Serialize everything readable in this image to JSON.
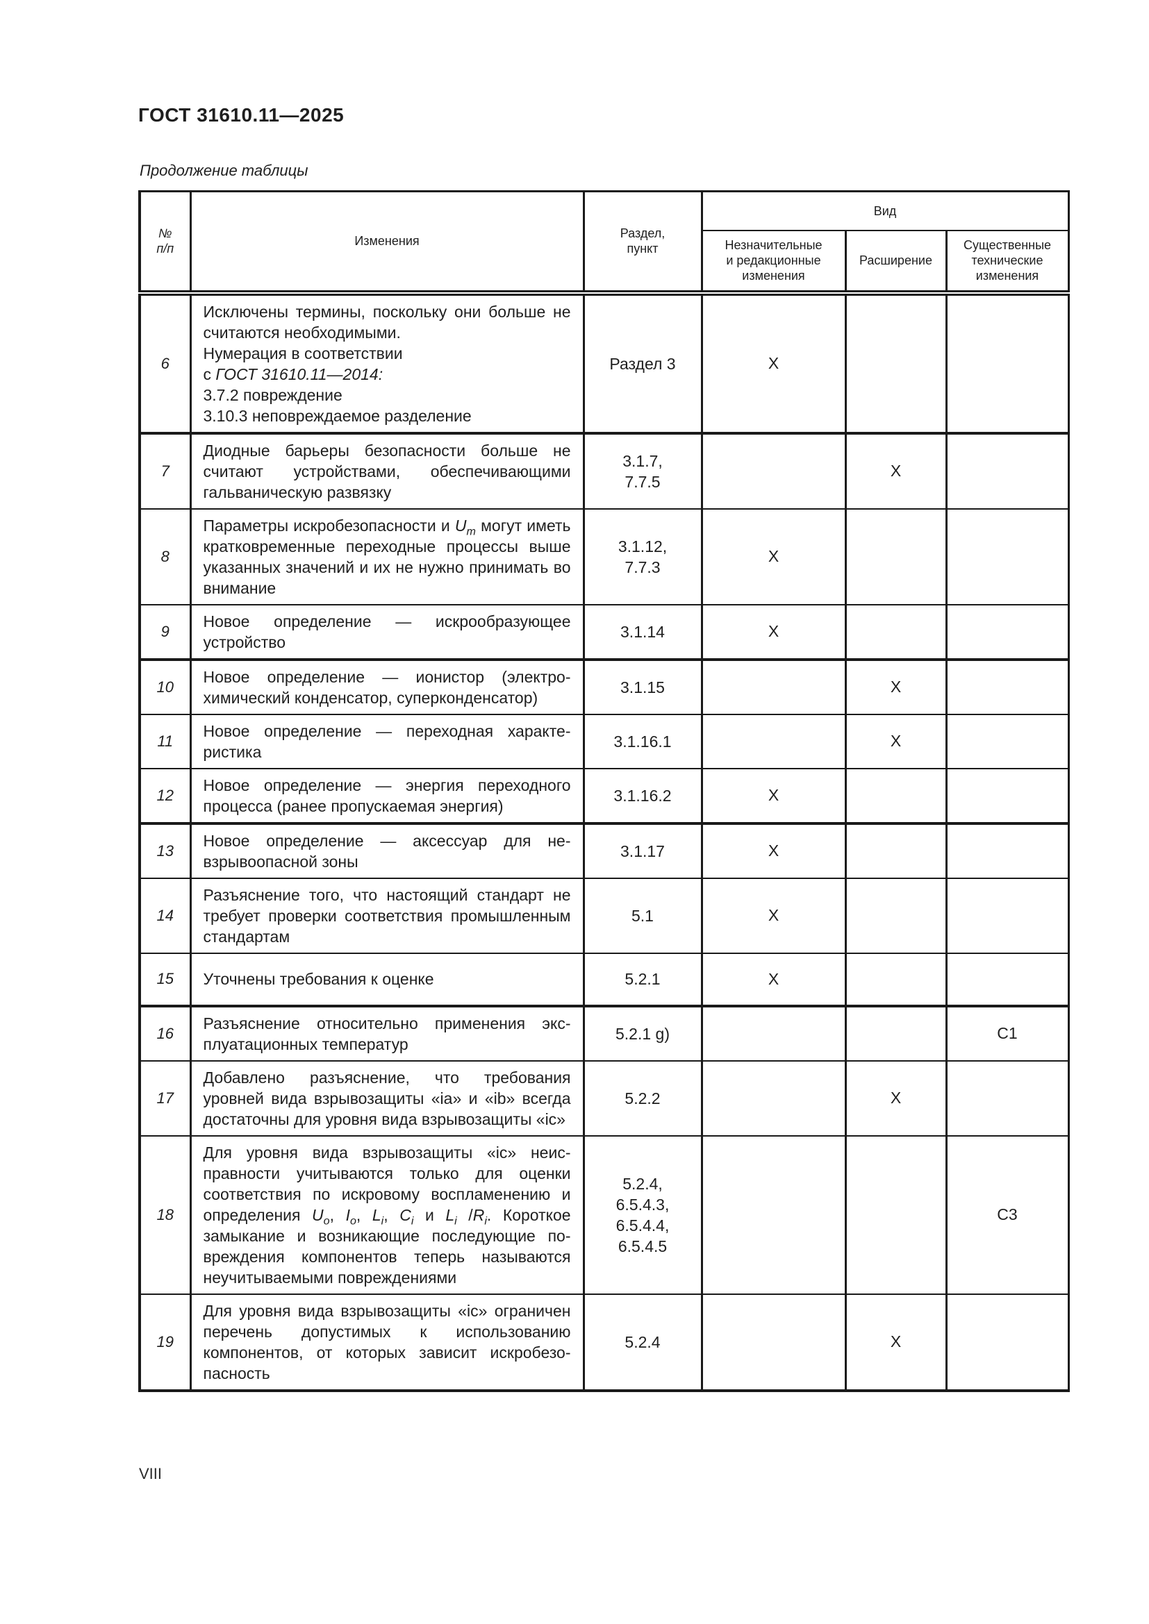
{
  "page": {
    "standard": "ГОСТ 31610.11—2025",
    "table_caption": "Продолжение таблицы",
    "page_number": "VIII"
  },
  "table": {
    "columns": {
      "num": "№\nп/п",
      "changes": "Изменения",
      "section": "Раздел,\nпункт",
      "vid_group": "Вид",
      "minor": "Незначительные\nи редакционные\nизменения",
      "extension": "Расширение",
      "substantial": "Существенные\nтехнические\nизменения"
    },
    "rows": [
      {
        "num": "6",
        "changes": "Исключены термины, поскольку они больше не считаются необходимыми.\nНумерация в соответствии\nс *ГОСТ 31610.11—2014:*\n3.7.2 повреждение\n3.10.3 неповреждаемое разделение",
        "section": "Раздел 3",
        "minor": "X",
        "extension": "",
        "substantial": "",
        "thick_top": false
      },
      {
        "num": "7",
        "changes": "Диодные барьеры безопасности больше не считают устройствами, обеспечивающими гальваническую развязку",
        "section": "3.1.7,\n7.7.5",
        "minor": "",
        "extension": "X",
        "substantial": "",
        "thick_top": true
      },
      {
        "num": "8",
        "changes": "Параметры искробезопасности и *U*~*m*~ могут иметь кратковременные переходные процес­сы выше указанных значений и их не нужно принимать во внимание",
        "section": "3.1.12,\n7.7.3",
        "minor": "X",
        "extension": "",
        "substantial": "",
        "thick_top": false
      },
      {
        "num": "9",
        "changes": "Новое определение — искрообразующее устройство",
        "section": "3.1.14",
        "minor": "X",
        "extension": "",
        "substantial": "",
        "thick_top": false
      },
      {
        "num": "10",
        "changes": "Новое определение — ионистор (электро­химический конденсатор, суперконденсатор)",
        "section": "3.1.15",
        "minor": "",
        "extension": "X",
        "substantial": "",
        "thick_top": true
      },
      {
        "num": "11",
        "changes": "Новое определение — переходная характе­ристика",
        "section": "3.1.16.1",
        "minor": "",
        "extension": "X",
        "substantial": "",
        "thick_top": false
      },
      {
        "num": "12",
        "changes": "Новое определение — энергия переходного процесса (ранее пропускаемая энергия)",
        "section": "3.1.16.2",
        "minor": "X",
        "extension": "",
        "substantial": "",
        "thick_top": false
      },
      {
        "num": "13",
        "changes": "Новое определение — аксессуар для не­взрывоопасной зоны",
        "section": "3.1.17",
        "minor": "X",
        "extension": "",
        "substantial": "",
        "thick_top": true
      },
      {
        "num": "14",
        "changes": "Разъяснение того, что настоящий стандарт не требует проверки соответствия промыш­ленным стандартам",
        "section": "5.1",
        "minor": "X",
        "extension": "",
        "substantial": "",
        "thick_top": false
      },
      {
        "num": "15",
        "changes": "Уточнены требования к оценке",
        "section": "5.2.1",
        "minor": "X",
        "extension": "",
        "substantial": "",
        "thick_top": false
      },
      {
        "num": "16",
        "changes": "Разъяснение относительно применения экс­плуатационных температур",
        "section": "5.2.1 g)",
        "minor": "",
        "extension": "",
        "substantial": "С1",
        "thick_top": true
      },
      {
        "num": "17",
        "changes": "Добавлено разъяснение, что требования уровней вида взрывозащиты «ia» и «ib» всег­да достаточны для уровня вида взрывозащи­ты «ic»",
        "section": "5.2.2",
        "minor": "",
        "extension": "X",
        "substantial": "",
        "thick_top": false
      },
      {
        "num": "18",
        "changes": "Для уровня вида взрывозащиты «ic» неис­правности учитываются только для оценки соответствия по искровому воспламенению и определения *U*~*o*~, *I*~*o*~, *L*~*i*~, *C*~*i*~ и *L*~*i*~ /*R*~*i*~. Короткое замыкание и возникающие последующие по­вреждения компонентов теперь называются неучитываемыми повреждениями",
        "section": "5.2.4,\n6.5.4.3,\n6.5.4.4,\n6.5.4.5",
        "minor": "",
        "extension": "",
        "substantial": "С3",
        "thick_top": false
      },
      {
        "num": "19",
        "changes": "Для уровня вида взрывозащиты «ic» ограни­чен перечень допустимых к использованию компонентов, от которых зависит искробезо­пасность",
        "section": "5.2.4",
        "minor": "",
        "extension": "X",
        "substantial": "",
        "thick_top": false
      }
    ]
  }
}
